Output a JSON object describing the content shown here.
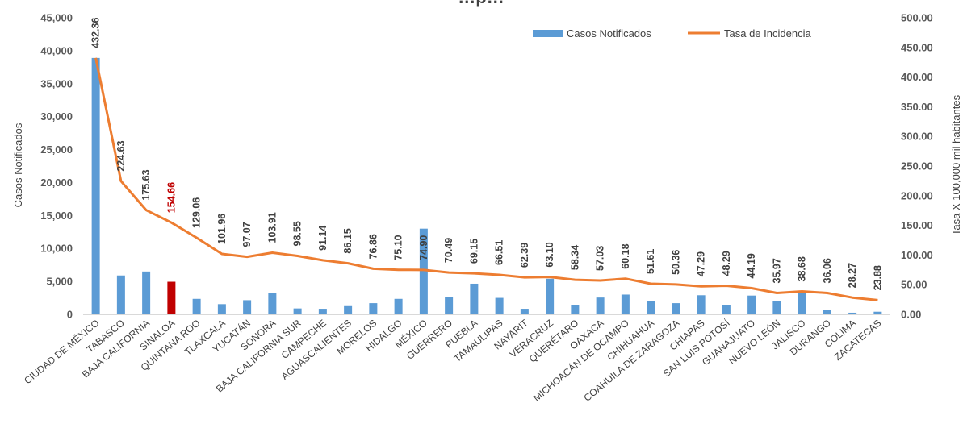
{
  "chart_data": {
    "type": "bar",
    "title": "…p…",
    "ylabel_left": "Casos Notificados",
    "ylabel_right": "Tasa X 100,000 mil habitantes",
    "ylim_left": [
      0,
      45000
    ],
    "ylim_right": [
      0,
      500
    ],
    "yticks_left": [
      "0",
      "5,000",
      "10,000",
      "15,000",
      "20,000",
      "25,000",
      "30,000",
      "35,000",
      "40,000",
      "45,000"
    ],
    "yticks_right": [
      "0.00",
      "50.00",
      "100.00",
      "150.00",
      "200.00",
      "250.00",
      "300.00",
      "350.00",
      "400.00",
      "450.00",
      "500.00"
    ],
    "legend_position": "top-right",
    "grid": false,
    "highlight_color": "#c00000",
    "bar_color": "#5b9bd5",
    "line_color": "#ed7d31",
    "categories": [
      "CIUDAD DE MÉXICO",
      "TABASCO",
      "BAJA CALIFORNIA",
      "SINALOA",
      "QUINTANA ROO",
      "TLAXCALA",
      "YUCATÁN",
      "SONORA",
      "BAJA CALIFORNIA SUR",
      "CAMPECHE",
      "AGUASCALIENTES",
      "MORELOS",
      "HIDALGO",
      "MÉXICO",
      "GUERRERO",
      "PUEBLA",
      "TAMAULIPAS",
      "NAYARIT",
      "VERACRUZ",
      "QUERÉTARO",
      "OAXACA",
      "MICHOACÁN DE OCAMPO",
      "CHIHUAHUA",
      "COAHUILA DE ZARAGOZA",
      "CHIAPAS",
      "SAN LUIS POTOSÍ",
      "GUANAJUATO",
      "NUEVO LEÓN",
      "JALISCO",
      "DURANGO",
      "COLIMA",
      "ZACATECAS"
    ],
    "highlight_category": "SINALOA",
    "series": [
      {
        "name": "Casos Notificados",
        "type": "bar",
        "axis": "left",
        "values": [
          38900,
          5900,
          6500,
          4950,
          2350,
          1550,
          2150,
          3300,
          900,
          850,
          1250,
          1700,
          2350,
          13000,
          2650,
          4650,
          2500,
          850,
          5400,
          1350,
          2550,
          3000,
          2000,
          1700,
          2900,
          1350,
          2850,
          2000,
          3300,
          700,
          250,
          400
        ]
      },
      {
        "name": "Tasa de Incidencia",
        "type": "line",
        "axis": "right",
        "values": [
          432.36,
          224.63,
          175.63,
          154.66,
          129.06,
          101.96,
          97.07,
          103.91,
          98.55,
          91.14,
          86.15,
          76.86,
          75.1,
          74.9,
          70.49,
          69.15,
          66.51,
          62.39,
          63.1,
          58.34,
          57.03,
          60.18,
          51.61,
          50.36,
          47.29,
          48.29,
          44.19,
          35.97,
          38.68,
          36.06,
          28.27,
          23.88
        ],
        "labels": [
          "432.36",
          "224.63",
          "175.63",
          "154.66",
          "129.06",
          "101.96",
          "97.07",
          "103.91",
          "98.55",
          "91.14",
          "86.15",
          "76.86",
          "75.10",
          "74.90",
          "70.49",
          "69.15",
          "66.51",
          "62.39",
          "63.10",
          "58.34",
          "57.03",
          "60.18",
          "51.61",
          "50.36",
          "47.29",
          "48.29",
          "44.19",
          "35.97",
          "38.68",
          "36.06",
          "28.27",
          "23.88"
        ]
      }
    ]
  }
}
